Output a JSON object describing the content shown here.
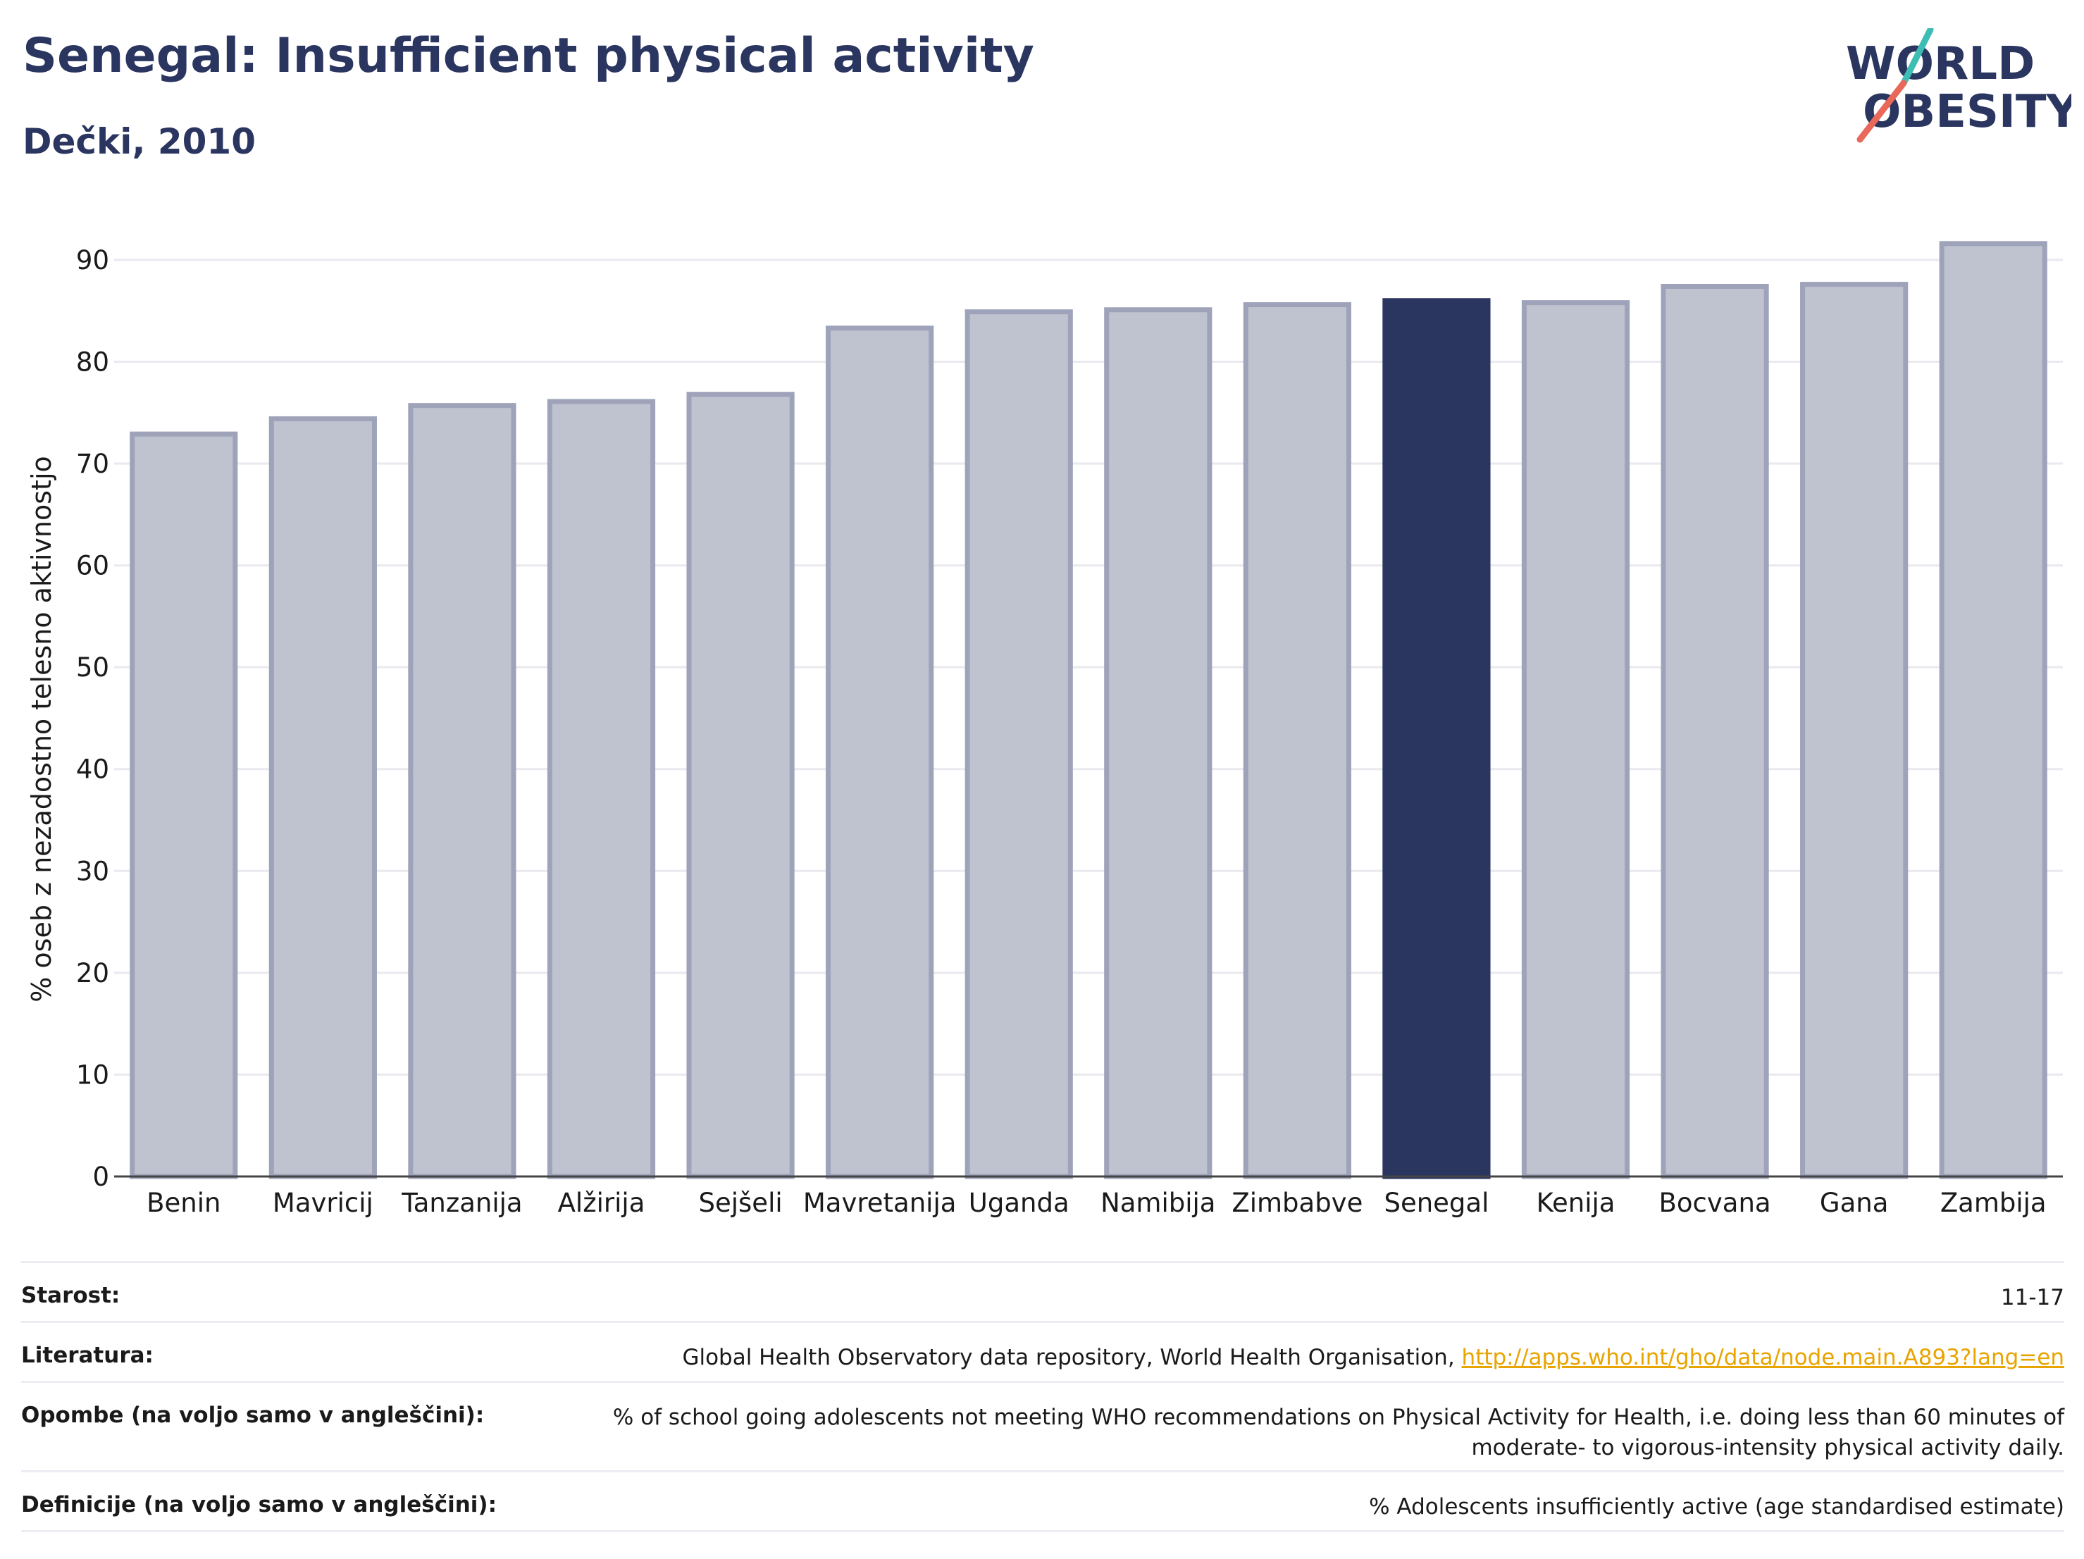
{
  "header": {
    "title": "Senegal: Insufficient physical activity",
    "subtitle": "Dečki, 2010"
  },
  "logo": {
    "line1": "WORLD",
    "line2": "OBESITY"
  },
  "colors": {
    "highlight": "#2a3560",
    "bar": "#bfc2cf",
    "bar_border": "#9ea3ba",
    "accent_teal": "#3dbdb3",
    "accent_red": "#e8685a"
  },
  "chart_data": {
    "type": "bar",
    "ylabel": "% oseb z nezadostno telesno aktivnostjo",
    "ylim": [
      0,
      92
    ],
    "yticks": [
      0,
      10,
      20,
      30,
      40,
      50,
      60,
      70,
      80,
      90
    ],
    "grid": true,
    "highlight": "Senegal",
    "categories": [
      "Benin",
      "Mavricij",
      "Tanzanija",
      "Alžirija",
      "Sejšeli",
      "Mavretanija",
      "Uganda",
      "Namibija",
      "Zimbabve",
      "Senegal",
      "Kenija",
      "Bocvana",
      "Gana",
      "Zambija"
    ],
    "values": [
      72.9,
      74.4,
      75.7,
      76.1,
      76.8,
      83.3,
      84.9,
      85.1,
      85.6,
      86.0,
      85.8,
      87.4,
      87.6,
      91.6
    ]
  },
  "meta": {
    "age_label": "Starost:",
    "age_value": "11-17",
    "lit_label": "Literatura:",
    "lit_value": "Global Health Observatory data repository, World Health Organisation, ",
    "lit_link": "http://apps.who.int/gho/data/node.main.A893?lang=en",
    "notes_label": "Opombe (na voljo samo v angleščini):",
    "notes_value": "% of school going adolescents not meeting WHO recommendations on Physical Activity for Health, i.e. doing less than 60 minutes of moderate- to vigorous-intensity physical activity daily.",
    "def_label": "Definicije (na voljo samo v angleščini):",
    "def_value": "% Adolescents insufficiently active (age standardised estimate)"
  }
}
